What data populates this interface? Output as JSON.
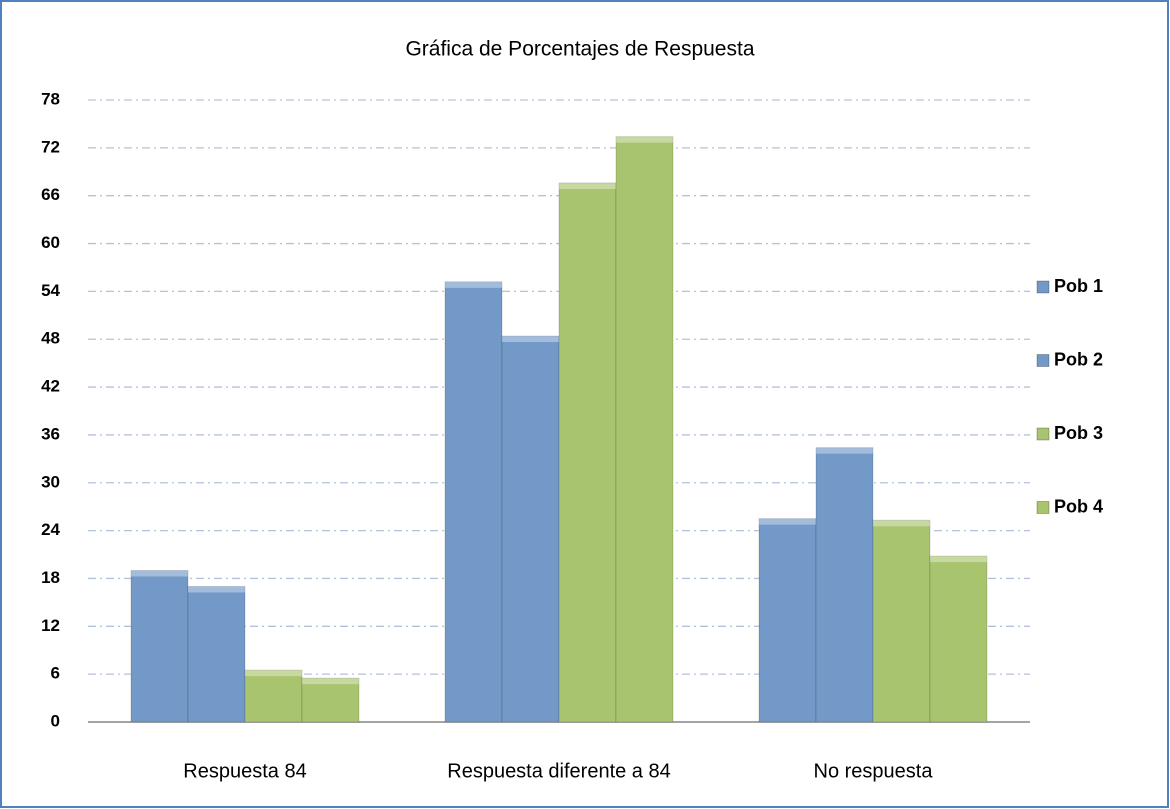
{
  "chart_data": {
    "type": "bar",
    "title": "Gráfica de Porcentajes de Respuesta",
    "categories": [
      "Respuesta 84",
      "Respuesta diferente a 84",
      "No respuesta"
    ],
    "series": [
      {
        "name": "Pob 1",
        "color": "#7399c9",
        "values": [
          19,
          55.2,
          25.5
        ]
      },
      {
        "name": "Pob 2",
        "color": "#7399c9",
        "values": [
          17,
          48.4,
          34.4
        ]
      },
      {
        "name": "Pob 3",
        "color": "#a9c46f",
        "values": [
          6.5,
          67.6,
          25.3
        ]
      },
      {
        "name": "Pob 4",
        "color": "#a9c46f",
        "values": [
          5.5,
          73.4,
          20.8
        ]
      }
    ],
    "ylim": [
      0,
      78
    ],
    "yticks": [
      0,
      6,
      12,
      18,
      24,
      30,
      36,
      42,
      48,
      54,
      60,
      66,
      72,
      78
    ],
    "grid": true,
    "legend": "right"
  }
}
